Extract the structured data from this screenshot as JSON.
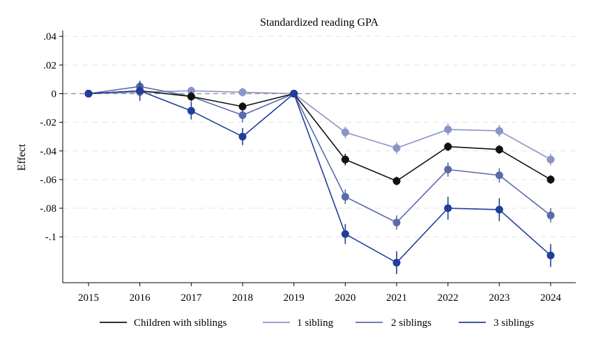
{
  "chart_data": {
    "type": "line",
    "title": "Standardized reading GPA",
    "xlabel": "",
    "ylabel": "Effect",
    "x": [
      2015,
      2016,
      2017,
      2018,
      2019,
      2020,
      2021,
      2022,
      2023,
      2024
    ],
    "x_tick_labels": [
      "2015",
      "2016",
      "2017",
      "2018",
      "2019",
      "2020",
      "2021",
      "2022",
      "2023",
      "2024"
    ],
    "ylim": [
      -0.132,
      0.044
    ],
    "y_ticks": [
      0.04,
      0.02,
      0,
      -0.02,
      -0.04,
      -0.06,
      -0.08,
      -0.1
    ],
    "y_tick_labels": [
      ".04",
      ".02",
      "0",
      "-.02",
      "-.04",
      "-.06",
      "-.08",
      "-.1"
    ],
    "reference_line": 0,
    "grid": true,
    "legend_position": "bottom",
    "series": [
      {
        "name": "Children with siblings",
        "color": "#111111",
        "values": [
          0,
          0.002,
          -0.002,
          -0.009,
          0,
          -0.046,
          -0.061,
          -0.037,
          -0.039,
          -0.06
        ],
        "ci_low": [
          0,
          -0.001,
          -0.005,
          -0.012,
          0,
          -0.05,
          -0.064,
          -0.04,
          -0.042,
          -0.063
        ],
        "ci_high": [
          0,
          0.005,
          0.001,
          -0.006,
          0,
          -0.042,
          -0.058,
          -0.034,
          -0.036,
          -0.057
        ]
      },
      {
        "name": "1 sibling",
        "color": "#8b93c7",
        "values": [
          0,
          0.001,
          0.002,
          0.001,
          0,
          -0.027,
          -0.038,
          -0.025,
          -0.026,
          -0.046
        ],
        "ci_low": [
          0,
          -0.002,
          -0.001,
          -0.002,
          0,
          -0.031,
          -0.042,
          -0.029,
          -0.03,
          -0.05
        ],
        "ci_high": [
          0,
          0.004,
          0.005,
          0.004,
          0,
          -0.023,
          -0.034,
          -0.021,
          -0.022,
          -0.042
        ]
      },
      {
        "name": "2 siblings",
        "color": "#5b6aac",
        "values": [
          0,
          0.005,
          -0.002,
          -0.015,
          0,
          -0.072,
          -0.09,
          -0.053,
          -0.057,
          -0.085
        ],
        "ci_low": [
          0,
          0.001,
          -0.006,
          -0.02,
          0,
          -0.077,
          -0.095,
          -0.058,
          -0.062,
          -0.09
        ],
        "ci_high": [
          0,
          0.009,
          0.002,
          -0.01,
          0,
          -0.067,
          -0.085,
          -0.048,
          -0.052,
          -0.08
        ]
      },
      {
        "name": "3 siblings",
        "color": "#1f3f9a",
        "values": [
          0,
          0.002,
          -0.012,
          -0.03,
          0,
          -0.098,
          -0.118,
          -0.08,
          -0.081,
          -0.113
        ],
        "ci_low": [
          0,
          -0.005,
          -0.018,
          -0.036,
          0,
          -0.105,
          -0.126,
          -0.088,
          -0.089,
          -0.121
        ],
        "ci_high": [
          0,
          0.009,
          -0.006,
          -0.024,
          0,
          -0.091,
          -0.11,
          -0.072,
          -0.073,
          -0.105
        ]
      }
    ]
  }
}
